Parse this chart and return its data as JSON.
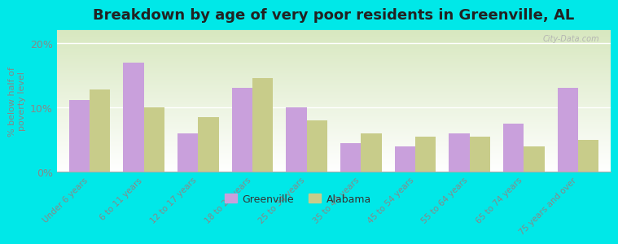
{
  "title": "Breakdown by age of very poor residents in Greenville, AL",
  "ylabel": "% below half of\npoverty level",
  "categories": [
    "Under 6 years",
    "6 to 11 years",
    "12 to 17 years",
    "18 to 24 years",
    "25 to 34 years",
    "35 to 44 years",
    "45 to 54 years",
    "55 to 64 years",
    "65 to 74 years",
    "75 years and over"
  ],
  "greenville": [
    11.2,
    17.0,
    6.0,
    13.0,
    10.0,
    4.5,
    4.0,
    6.0,
    7.5,
    13.0
  ],
  "alabama": [
    12.8,
    10.0,
    8.5,
    14.5,
    8.0,
    6.0,
    5.5,
    5.5,
    4.0,
    5.0
  ],
  "greenville_color": "#c9a0dc",
  "alabama_color": "#c8cc8a",
  "background_outer": "#00e8e8",
  "background_plot_bottom": "#d8e8c0",
  "background_plot_top": "#ffffff",
  "ylim": [
    0,
    22
  ],
  "yticks": [
    0,
    10,
    20
  ],
  "ytick_labels": [
    "0%",
    "10%",
    "20%"
  ],
  "bar_width": 0.38,
  "title_fontsize": 13,
  "watermark": "City-Data.com",
  "legend_greenville": "Greenville",
  "legend_alabama": "Alabama",
  "tick_color": "#888888",
  "label_color": "#888888"
}
